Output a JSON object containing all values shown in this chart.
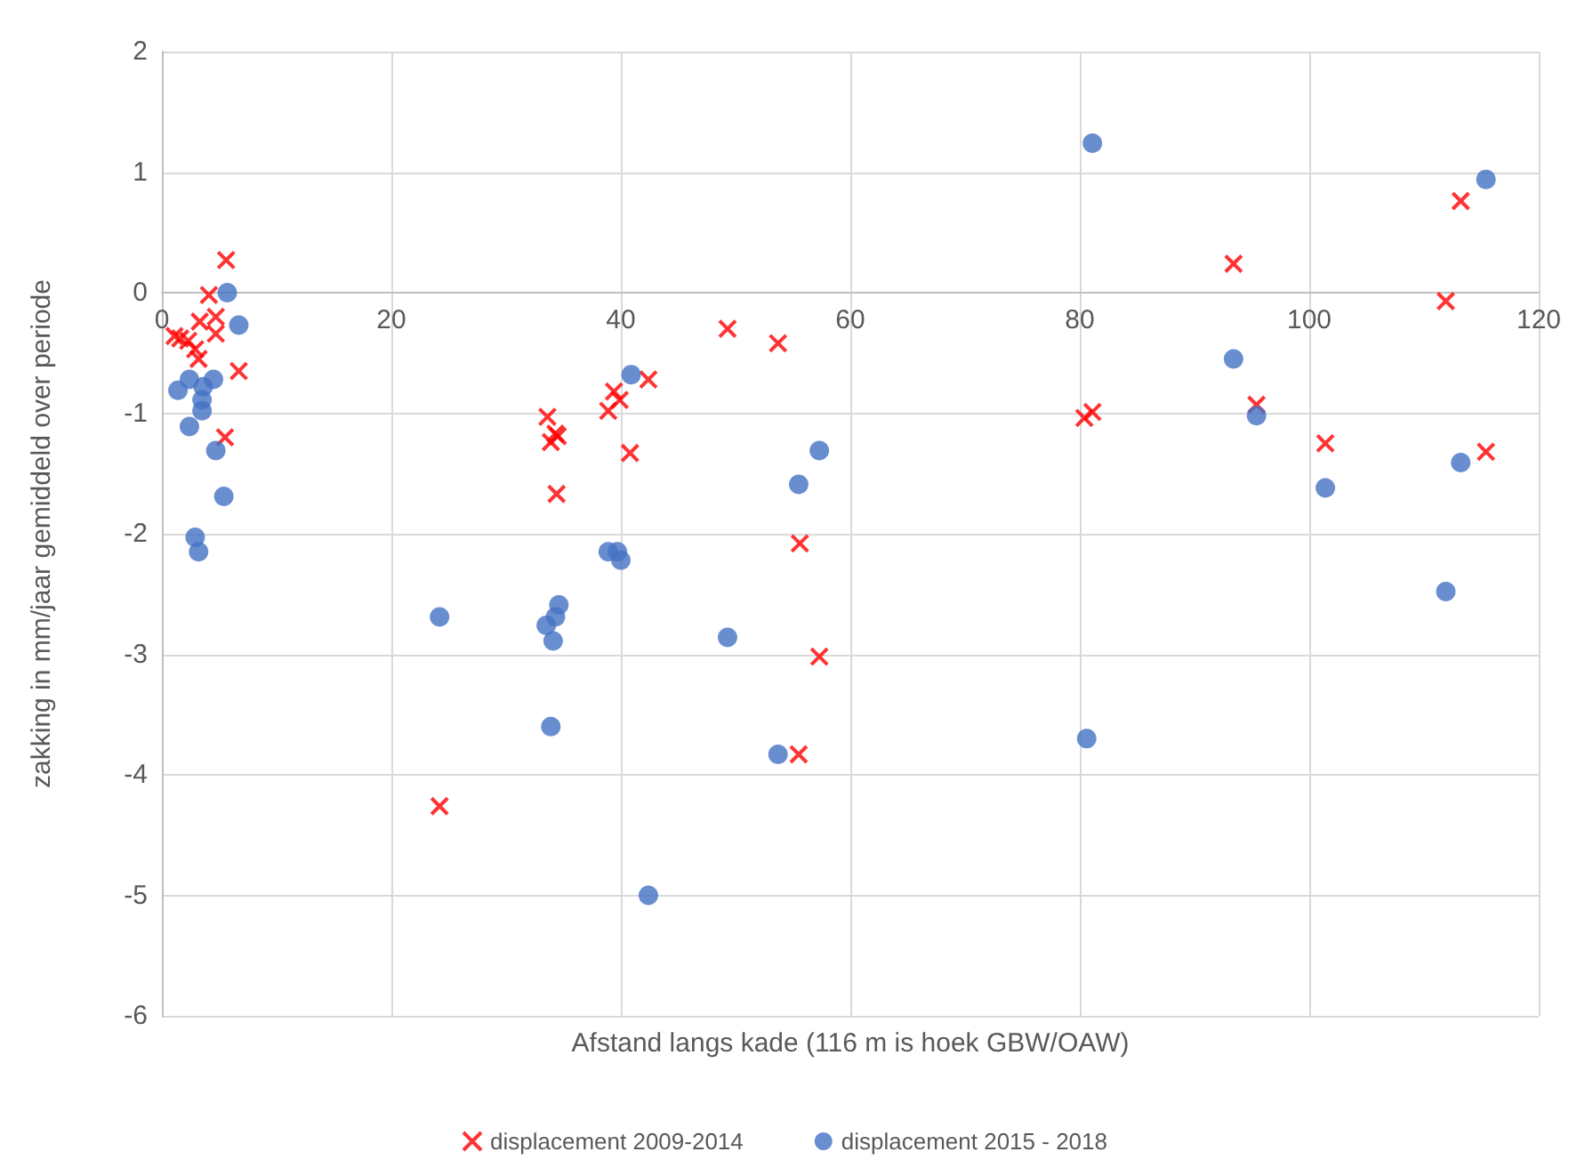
{
  "chart_data": {
    "type": "scatter",
    "xlabel": "Afstand langs kade (116 m is hoek GBW/OAW)",
    "ylabel": "zakking in mm/jaar gemiddeld over periode",
    "xlim": [
      0,
      120
    ],
    "xticks": [
      0,
      20,
      40,
      60,
      80,
      100,
      120
    ],
    "ylim": [
      -6,
      2
    ],
    "yticks": [
      -6,
      -5,
      -4,
      -3,
      -2,
      -1,
      0,
      1,
      2
    ],
    "grid": true,
    "legend": "bottom",
    "series": [
      {
        "name": "displacement 2009-2014",
        "color": "#ff0000",
        "marker": "cross",
        "x": [
          5.6,
          4.1,
          4.7,
          3.3,
          4.7,
          1.1,
          1.6,
          2.3,
          2.9,
          3.2,
          6.7,
          5.5,
          33.6,
          34.3,
          33.9,
          34.5,
          34.4,
          38.9,
          39.4,
          39.9,
          40.8,
          42.4,
          49.3,
          53.7,
          55.6,
          57.3,
          55.5,
          24.2,
          80.4,
          81.1,
          93.4,
          95.4,
          101.4,
          113.2,
          111.9,
          115.4
        ],
        "values": [
          0.27,
          -0.02,
          -0.2,
          -0.24,
          -0.34,
          -0.36,
          -0.38,
          -0.4,
          -0.47,
          -0.55,
          -0.65,
          -1.2,
          -1.03,
          -1.17,
          -1.24,
          -1.19,
          -1.67,
          -0.98,
          -0.82,
          -0.89,
          -1.33,
          -0.72,
          -0.3,
          -0.42,
          -2.08,
          -3.02,
          -3.83,
          -4.26,
          -1.04,
          -0.99,
          0.24,
          -0.93,
          -1.25,
          0.76,
          -0.07,
          -1.32
        ]
      },
      {
        "name": "displacement 2015 - 2018",
        "color": "#4472c4",
        "marker": "circle",
        "x": [
          5.7,
          6.7,
          1.4,
          2.4,
          4.5,
          3.6,
          3.5,
          3.5,
          2.4,
          4.7,
          5.4,
          2.9,
          3.2,
          40.9,
          57.3,
          55.5,
          38.9,
          39.7,
          40.0,
          24.2,
          34.6,
          34.3,
          33.5,
          34.1,
          49.3,
          33.9,
          53.7,
          42.4,
          81.1,
          115.4,
          93.4,
          95.4,
          113.2,
          101.4,
          111.9,
          80.6
        ],
        "values": [
          0.0,
          -0.27,
          -0.81,
          -0.72,
          -0.72,
          -0.78,
          -0.89,
          -0.98,
          -1.11,
          -1.31,
          -1.69,
          -2.03,
          -2.15,
          -0.68,
          -1.31,
          -1.59,
          -2.15,
          -2.15,
          -2.22,
          -2.69,
          -2.59,
          -2.69,
          -2.76,
          -2.89,
          -2.86,
          -3.6,
          -3.83,
          -5.0,
          1.24,
          0.94,
          -0.55,
          -1.02,
          -1.41,
          -1.62,
          -2.48,
          -3.7
        ]
      }
    ]
  }
}
